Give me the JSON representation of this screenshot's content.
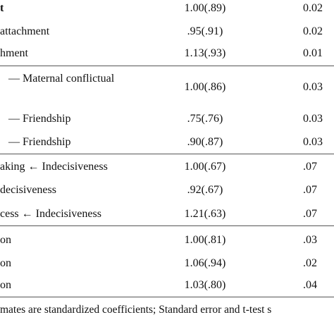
{
  "table": {
    "rows": [
      [
        "t",
        "1.00(.89)",
        "0.02"
      ],
      [
        "attachment",
        ".95(.91)",
        "0.02"
      ],
      [
        "hment",
        "1.13(.93)",
        "0.01"
      ],
      [
        "— Maternal conflictual",
        "1.00(.86)",
        "0.03"
      ],
      [
        "— Friendship",
        ".75(.76)",
        "0.03"
      ],
      [
        "— Friendship",
        ".90(.87)",
        "0.03"
      ],
      [
        "aking ← Indecisiveness",
        "1.00(.67)",
        ".07"
      ],
      [
        "decisiveness",
        ".92(.67)",
        ".07"
      ],
      [
        "cess ← Indecisiveness",
        "1.21(.63)",
        ".07"
      ],
      [
        "on",
        "1.00(.81)",
        ".03"
      ],
      [
        "on",
        "1.06(.94)",
        ".02"
      ],
      [
        "on",
        "1.03(.80)",
        ".04"
      ]
    ],
    "note": "mates are standardized coefficients; Standard error and t-test s"
  }
}
